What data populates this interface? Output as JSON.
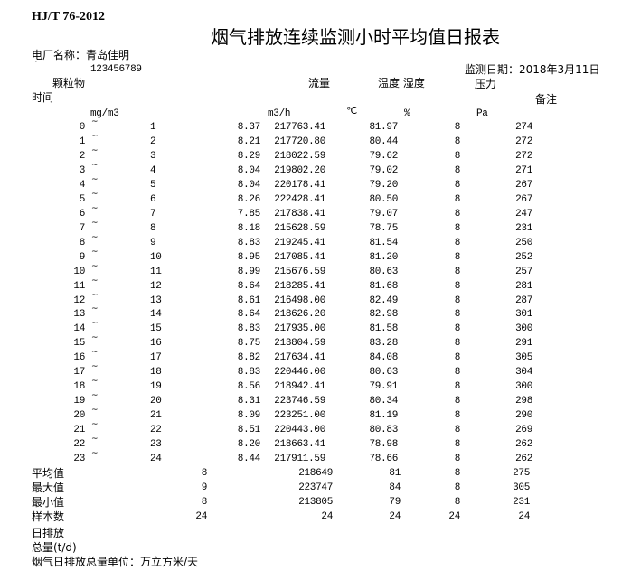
{
  "standard": "HJ/T 76-2012",
  "title": "烟气排放连续监测小时平均值日报表",
  "plant_label": "电厂名称：青岛佳明",
  "backtick": "`",
  "plant_code": "123456789",
  "date_label": "监测日期：2018年3月11日",
  "headers": {
    "particulate": "颗粒物",
    "flow": "流量",
    "temp_humidity": "温度 湿度",
    "pressure": "压力",
    "time": "时间",
    "remark": "备注"
  },
  "units": {
    "particulate": "mg/m3",
    "flow": "m3/h",
    "temp": "℃",
    "humidity": "%",
    "pressure": "Pa"
  },
  "tilde": "~",
  "rows": [
    [
      "0",
      "1",
      "8.37",
      "217763.41",
      "81.97",
      "8",
      "274"
    ],
    [
      "1",
      "2",
      "8.21",
      "217720.80",
      "80.44",
      "8",
      "272"
    ],
    [
      "2",
      "3",
      "8.29",
      "218022.59",
      "79.62",
      "8",
      "272"
    ],
    [
      "3",
      "4",
      "8.04",
      "219802.20",
      "79.02",
      "8",
      "271"
    ],
    [
      "4",
      "5",
      "8.04",
      "220178.41",
      "79.20",
      "8",
      "267"
    ],
    [
      "5",
      "6",
      "8.26",
      "222428.41",
      "80.50",
      "8",
      "267"
    ],
    [
      "6",
      "7",
      "7.85",
      "217838.41",
      "79.07",
      "8",
      "247"
    ],
    [
      "7",
      "8",
      "8.18",
      "215628.59",
      "78.75",
      "8",
      "231"
    ],
    [
      "8",
      "9",
      "8.83",
      "219245.41",
      "81.54",
      "8",
      "250"
    ],
    [
      "9",
      "10",
      "8.95",
      "217085.41",
      "81.20",
      "8",
      "252"
    ],
    [
      "10",
      "11",
      "8.99",
      "215676.59",
      "80.63",
      "8",
      "257"
    ],
    [
      "11",
      "12",
      "8.64",
      "218285.41",
      "81.68",
      "8",
      "281"
    ],
    [
      "12",
      "13",
      "8.61",
      "216498.00",
      "82.49",
      "8",
      "287"
    ],
    [
      "13",
      "14",
      "8.64",
      "218626.20",
      "82.98",
      "8",
      "301"
    ],
    [
      "14",
      "15",
      "8.83",
      "217935.00",
      "81.58",
      "8",
      "300"
    ],
    [
      "15",
      "16",
      "8.75",
      "213804.59",
      "83.28",
      "8",
      "291"
    ],
    [
      "16",
      "17",
      "8.82",
      "217634.41",
      "84.08",
      "8",
      "305"
    ],
    [
      "17",
      "18",
      "8.83",
      "220446.00",
      "80.63",
      "8",
      "304"
    ],
    [
      "18",
      "19",
      "8.56",
      "218942.41",
      "79.91",
      "8",
      "300"
    ],
    [
      "19",
      "20",
      "8.31",
      "223746.59",
      "80.34",
      "8",
      "298"
    ],
    [
      "20",
      "21",
      "8.09",
      "223251.00",
      "81.19",
      "8",
      "290"
    ],
    [
      "21",
      "22",
      "8.51",
      "220443.00",
      "80.83",
      "8",
      "269"
    ],
    [
      "22",
      "23",
      "8.20",
      "218663.41",
      "78.98",
      "8",
      "262"
    ],
    [
      "23",
      "24",
      "8.44",
      "217911.59",
      "78.66",
      "8",
      "262"
    ]
  ],
  "summary": [
    {
      "label": "平均值",
      "values": [
        "8",
        "218649",
        "81",
        "8",
        "275"
      ]
    },
    {
      "label": "最大值",
      "values": [
        "9",
        "223747",
        "84",
        "8",
        "305"
      ]
    },
    {
      "label": "最小值",
      "values": [
        "8",
        "213805",
        "79",
        "8",
        "231"
      ]
    },
    {
      "label": "样本数",
      "values": [
        "24",
        "24",
        "24",
        "24",
        "24"
      ]
    }
  ],
  "footer": {
    "daily_emission": "日排放",
    "total": "总量(t/d)",
    "unit_note": "烟气日排放总量单位：万立方米/天"
  }
}
